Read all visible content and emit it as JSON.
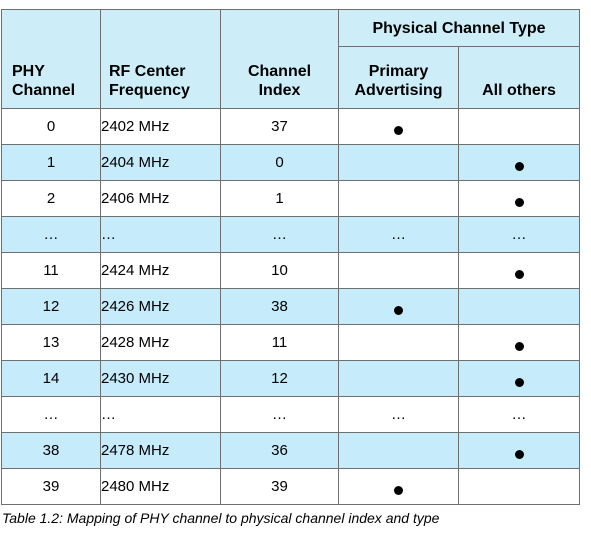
{
  "table": {
    "header": {
      "phy_channel": "PHY\nChannel",
      "rf_center_frequency": "RF Center\nFrequency",
      "channel_index": "Channel\nIndex",
      "group": "Physical Channel Type",
      "primary_advertising": "Primary\nAdvertising",
      "all_others": "All others"
    },
    "rows": [
      {
        "phy": "0",
        "freq": "2402 MHz",
        "idx": "37",
        "primary": "●",
        "others": ""
      },
      {
        "phy": "1",
        "freq": "2404 MHz",
        "idx": "0",
        "primary": "",
        "others": "●"
      },
      {
        "phy": "2",
        "freq": "2406 MHz",
        "idx": "1",
        "primary": "",
        "others": "●"
      },
      {
        "phy": "…",
        "freq": "…",
        "idx": "…",
        "primary": "…",
        "others": "…"
      },
      {
        "phy": "11",
        "freq": "2424 MHz",
        "idx": "10",
        "primary": "",
        "others": "●"
      },
      {
        "phy": "12",
        "freq": "2426 MHz",
        "idx": "38",
        "primary": "●",
        "others": ""
      },
      {
        "phy": "13",
        "freq": "2428 MHz",
        "idx": "11",
        "primary": "",
        "others": "●"
      },
      {
        "phy": "14",
        "freq": "2430 MHz",
        "idx": "12",
        "primary": "",
        "others": "●"
      },
      {
        "phy": "…",
        "freq": "…",
        "idx": "…",
        "primary": "…",
        "others": "…"
      },
      {
        "phy": "38",
        "freq": "2478 MHz",
        "idx": "36",
        "primary": "",
        "others": "●"
      },
      {
        "phy": "39",
        "freq": "2480 MHz",
        "idx": "39",
        "primary": "●",
        "others": ""
      }
    ]
  },
  "caption": "Table 1.2:  Mapping of PHY channel to physical channel index and type"
}
